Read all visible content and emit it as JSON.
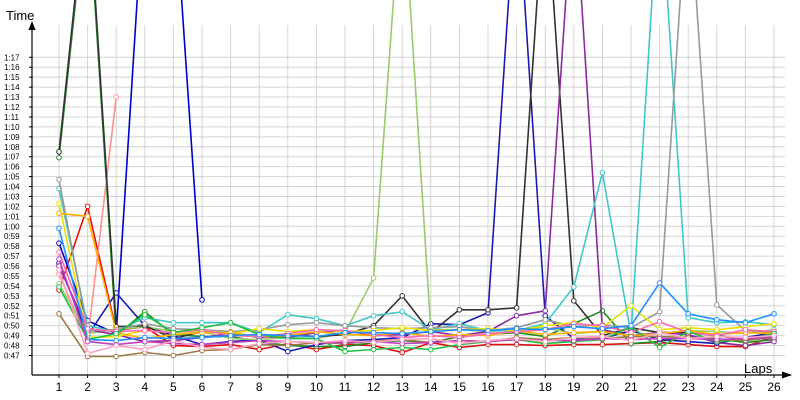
{
  "chart_data": {
    "type": "line",
    "xlabel": "Laps",
    "ylabel": "Time",
    "x": [
      1,
      2,
      3,
      4,
      5,
      6,
      7,
      8,
      9,
      10,
      11,
      12,
      13,
      14,
      15,
      16,
      17,
      18,
      19,
      20,
      21,
      22,
      23,
      24,
      25,
      26
    ],
    "x_tick_labels": [
      "1",
      "2",
      "3",
      "4",
      "5",
      "6",
      "7",
      "8",
      "9",
      "10",
      "11",
      "12",
      "13",
      "14",
      "15",
      "16",
      "17",
      "18",
      "19",
      "20",
      "21",
      "22",
      "23",
      "24",
      "25",
      "26"
    ],
    "y_unit": "seconds",
    "ylim": [
      46,
      81
    ],
    "y_ticks": [
      47,
      48,
      49,
      50,
      51,
      52,
      53,
      54,
      55,
      56,
      57,
      58,
      59,
      60,
      61,
      62,
      63,
      64,
      65,
      66,
      67,
      68,
      69,
      70,
      71,
      72,
      73,
      74,
      75,
      76,
      77
    ],
    "y_tick_labels": [
      "0:47",
      "0:48",
      "0:49",
      "0:50",
      "0:51",
      "0:52",
      "0:53",
      "0:54",
      "0:55",
      "0:56",
      "0:57",
      "0:58",
      "0:59",
      "1:00",
      "1:01",
      "1:02",
      "1:03",
      "1:04",
      "1:05",
      "1:06",
      "1:07",
      "1:08",
      "1:09",
      "1:10",
      "1:11",
      "1:12",
      "1:13",
      "1:14",
      "1:15",
      "1:16",
      "1:17"
    ],
    "grid": true,
    "legend": "none",
    "series": [
      {
        "color": "#e01010",
        "values": [
          53.6,
          62.0,
          49.5,
          49.9,
          48.0,
          47.9,
          48.1,
          47.6,
          48.2,
          47.6,
          48.1,
          48.0,
          47.3,
          48.3,
          47.8,
          48.1,
          48.1,
          48.0,
          48.1,
          48.1,
          48.2,
          48.3,
          48.1,
          47.9,
          47.9,
          48.9
        ]
      },
      {
        "color": "#228b22",
        "values": [
          66.9,
          94.0,
          49.0,
          51.4,
          49.1,
          48.9,
          48.9,
          48.4,
          48.0,
          47.9,
          47.9,
          48.3,
          48.5,
          48.3,
          48.9,
          49.1,
          49.3,
          48.9,
          50.2,
          51.5,
          48.2,
          48.4,
          48.9,
          48.7,
          48.3,
          48.6
        ]
      },
      {
        "color": "#0000cc",
        "values": [
          58.3,
          50.5,
          49.2,
          95.0,
          95.0,
          52.6,
          null,
          null,
          null,
          null,
          null,
          null,
          null,
          null,
          null,
          null,
          null,
          null,
          null,
          null,
          null,
          null,
          null,
          null,
          null,
          null
        ]
      },
      {
        "color": "#1a1ab0",
        "values": [
          56.3,
          49.0,
          53.3,
          50.0,
          49.0,
          48.1,
          48.4,
          48.6,
          47.4,
          48.1,
          48.5,
          48.6,
          48.8,
          50.2,
          50.1,
          51.3,
          95.0,
          51.0,
          48.7,
          48.7,
          49.5,
          48.6,
          48.4,
          48.2,
          48.8,
          49.3
        ]
      },
      {
        "color": "#ff9090",
        "values": [
          55.2,
          48.5,
          73.0,
          null,
          null,
          null,
          null,
          null,
          null,
          null,
          null,
          null,
          null,
          null,
          null,
          null,
          null,
          null,
          null,
          null,
          null,
          null,
          null,
          null,
          null,
          null
        ]
      },
      {
        "color": "#9bc96b",
        "values": [
          54.2,
          49.2,
          49.6,
          49.9,
          49.4,
          49.4,
          48.7,
          48.6,
          48.8,
          48.7,
          49.3,
          54.8,
          95.0,
          49.6,
          49.6,
          49.4,
          49.6,
          49.8,
          49.2,
          49.4,
          49.0,
          49.2,
          49.5,
          49.4,
          49.2,
          49.6
        ]
      },
      {
        "color": "#333333",
        "values": [
          67.5,
          95.0,
          49.9,
          50.0,
          48.7,
          49.4,
          49.3,
          48.8,
          49.1,
          48.9,
          49.1,
          50.0,
          53.0,
          49.3,
          51.6,
          51.6,
          51.8,
          95.0,
          52.5,
          49.0,
          49.8,
          49.3,
          49.3,
          49.0,
          48.6,
          48.9
        ]
      },
      {
        "color": "#8b2b9e",
        "values": [
          56.0,
          49.6,
          49.1,
          48.4,
          48.5,
          48.8,
          49.2,
          48.9,
          48.8,
          49.3,
          49.5,
          49.0,
          49.1,
          49.4,
          49.0,
          49.4,
          51.0,
          51.5,
          95.0,
          49.6,
          49.0,
          49.3,
          49.1,
          48.3,
          48.0,
          48.4
        ]
      },
      {
        "color": "#40c8c8",
        "values": [
          63.8,
          50.0,
          49.4,
          50.8,
          50.3,
          50.3,
          50.3,
          49.3,
          51.1,
          50.7,
          50.0,
          51.0,
          51.4,
          49.6,
          50.2,
          49.5,
          49.5,
          50.2,
          53.9,
          65.4,
          49.1,
          95.0,
          50.8,
          50.3,
          50.4,
          50.1
        ]
      },
      {
        "color": "#999999",
        "values": [
          64.7,
          49.5,
          49.6,
          50.2,
          49.7,
          49.6,
          49.4,
          49.6,
          50.1,
          50.3,
          50.0,
          49.8,
          49.7,
          49.8,
          49.9,
          49.5,
          49.8,
          50.6,
          49.9,
          50.1,
          49.8,
          51.4,
          95.0,
          52.1,
          49.5,
          49.3
        ]
      },
      {
        "color": "#e8e000",
        "values": [
          62.3,
          48.8,
          48.9,
          49.5,
          49.3,
          49.5,
          49.2,
          49.7,
          49.4,
          49.6,
          49.4,
          49.5,
          49.8,
          49.5,
          49.6,
          49.7,
          49.5,
          50.0,
          50.3,
          49.8,
          52.0,
          49.6,
          49.8,
          49.6,
          49.9,
          50.2
        ]
      },
      {
        "color": "#ffb000",
        "values": [
          61.3,
          61.0,
          49.3,
          48.7,
          49.1,
          49.3,
          49.3,
          48.9,
          49.0,
          49.4,
          49.1,
          49.0,
          49.3,
          48.9,
          49.1,
          49.0,
          49.5,
          49.1,
          49.3,
          49.4,
          49.0,
          49.2,
          49.5,
          49.1,
          49.3,
          49.2
        ]
      },
      {
        "color": "#ff69b4",
        "values": [
          57.4,
          49.7,
          49.4,
          49.5,
          49.3,
          49.6,
          49.0,
          48.9,
          49.2,
          49.6,
          49.5,
          49.1,
          48.8,
          49.0,
          48.8,
          49.2,
          49.4,
          49.6,
          50.2,
          50.0,
          49.3,
          50.4,
          49.3,
          49.0,
          49.6,
          49.4
        ]
      },
      {
        "color": "#20c040",
        "values": [
          53.9,
          48.6,
          49.2,
          51.1,
          49.3,
          49.8,
          50.3,
          49.1,
          48.7,
          48.7,
          47.4,
          47.6,
          47.8,
          47.6,
          48.1,
          48.4,
          48.6,
          48.2,
          48.4,
          48.6,
          49.9,
          47.8,
          49.4,
          48.4,
          48.6,
          49.2
        ]
      },
      {
        "color": "#1e90ff",
        "values": [
          59.8,
          48.6,
          48.5,
          48.8,
          48.7,
          48.8,
          49.0,
          49.1,
          49.0,
          48.9,
          49.3,
          49.3,
          49.2,
          49.4,
          49.6,
          49.5,
          49.7,
          49.6,
          49.9,
          49.7,
          50.0,
          54.3,
          51.2,
          50.6,
          50.3,
          51.2
        ]
      },
      {
        "color": "#9c7a46",
        "values": [
          51.2,
          46.9,
          46.9,
          47.3,
          47.0,
          47.5,
          47.6,
          48.1,
          48.0,
          48.3,
          48.2,
          48.4,
          48.6,
          48.3,
          48.5,
          48.4,
          48.8,
          48.6,
          48.8,
          48.7,
          48.9,
          48.9,
          48.8,
          48.6,
          48.5,
          48.8
        ]
      },
      {
        "color": "#c040c0",
        "values": [
          56.7,
          48.4,
          48.1,
          48.4,
          48.2,
          48.1,
          48.3,
          48.5,
          48.4,
          48.3,
          48.3,
          48.4,
          48.2,
          48.3,
          48.5,
          48.4,
          48.6,
          48.5,
          48.5,
          48.7,
          48.6,
          48.7,
          48.7,
          48.6,
          48.7,
          48.8
        ]
      },
      {
        "color": "#ffa0c0",
        "values": [
          55.6,
          47.2,
          48.0,
          47.6,
          48.5,
          47.8,
          47.6,
          48.2,
          48.4,
          48.3,
          48.5,
          48.3,
          48.6,
          48.7,
          48.2,
          48.5,
          48.7,
          48.4,
          48.8,
          48.9,
          48.5,
          49.3,
          48.7,
          48.9,
          48.8,
          49.0
        ]
      }
    ]
  }
}
